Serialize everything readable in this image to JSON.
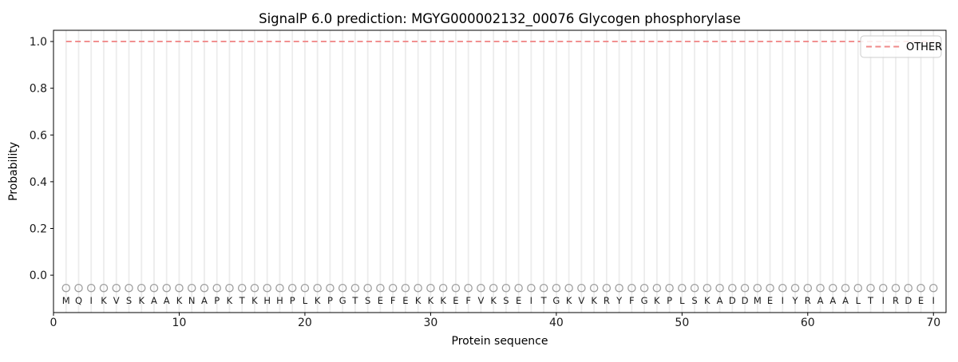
{
  "chart_data": {
    "type": "line",
    "title": "SignalP 6.0 prediction: MGYG000002132_00076 Glycogen phosphorylase",
    "xlabel": "Protein sequence",
    "ylabel": "Probability",
    "xlim": [
      0,
      71
    ],
    "ylim": [
      -0.16,
      1.048
    ],
    "xticks": [
      0,
      10,
      20,
      30,
      40,
      50,
      60,
      70
    ],
    "yticks": [
      "0.0",
      "0.2",
      "0.4",
      "0.6",
      "0.8",
      "1.0"
    ],
    "grid": {
      "vertical_per_residue": true,
      "horizontal": false,
      "color": "#ececec"
    },
    "sequence": "MQIKVSKAAKNAPKTKHHPLKPGTSEFEKKKEFVKSEITGKVKRYFGKPLSKADDMEIYRAAALTIRDEI",
    "sequence_length": 70,
    "series": [
      {
        "name": "OTHER",
        "line_style": "dashed",
        "color": "#f08989",
        "x_start": 1,
        "values": [
          1.0,
          1.0,
          1.0,
          1.0,
          1.0,
          1.0,
          1.0,
          1.0,
          1.0,
          1.0,
          1.0,
          1.0,
          1.0,
          1.0,
          1.0,
          1.0,
          1.0,
          1.0,
          1.0,
          1.0,
          1.0,
          1.0,
          1.0,
          1.0,
          1.0,
          1.0,
          1.0,
          1.0,
          1.0,
          1.0,
          1.0,
          1.0,
          1.0,
          1.0,
          1.0,
          1.0,
          1.0,
          1.0,
          1.0,
          1.0,
          1.0,
          1.0,
          1.0,
          1.0,
          1.0,
          1.0,
          1.0,
          1.0,
          1.0,
          1.0,
          1.0,
          1.0,
          1.0,
          1.0,
          1.0,
          1.0,
          1.0,
          1.0,
          1.0,
          1.0,
          1.0,
          1.0,
          1.0,
          1.0,
          1.0,
          1.0,
          1.0,
          1.0,
          1.0,
          1.0
        ]
      }
    ],
    "residue_markers": {
      "shape": "open-circle",
      "y": -0.055,
      "color": "#9e9e9e"
    },
    "legend": {
      "position": "upper-right",
      "entries": [
        {
          "label": "OTHER",
          "style": "dashed",
          "color": "#f08989"
        }
      ]
    }
  }
}
